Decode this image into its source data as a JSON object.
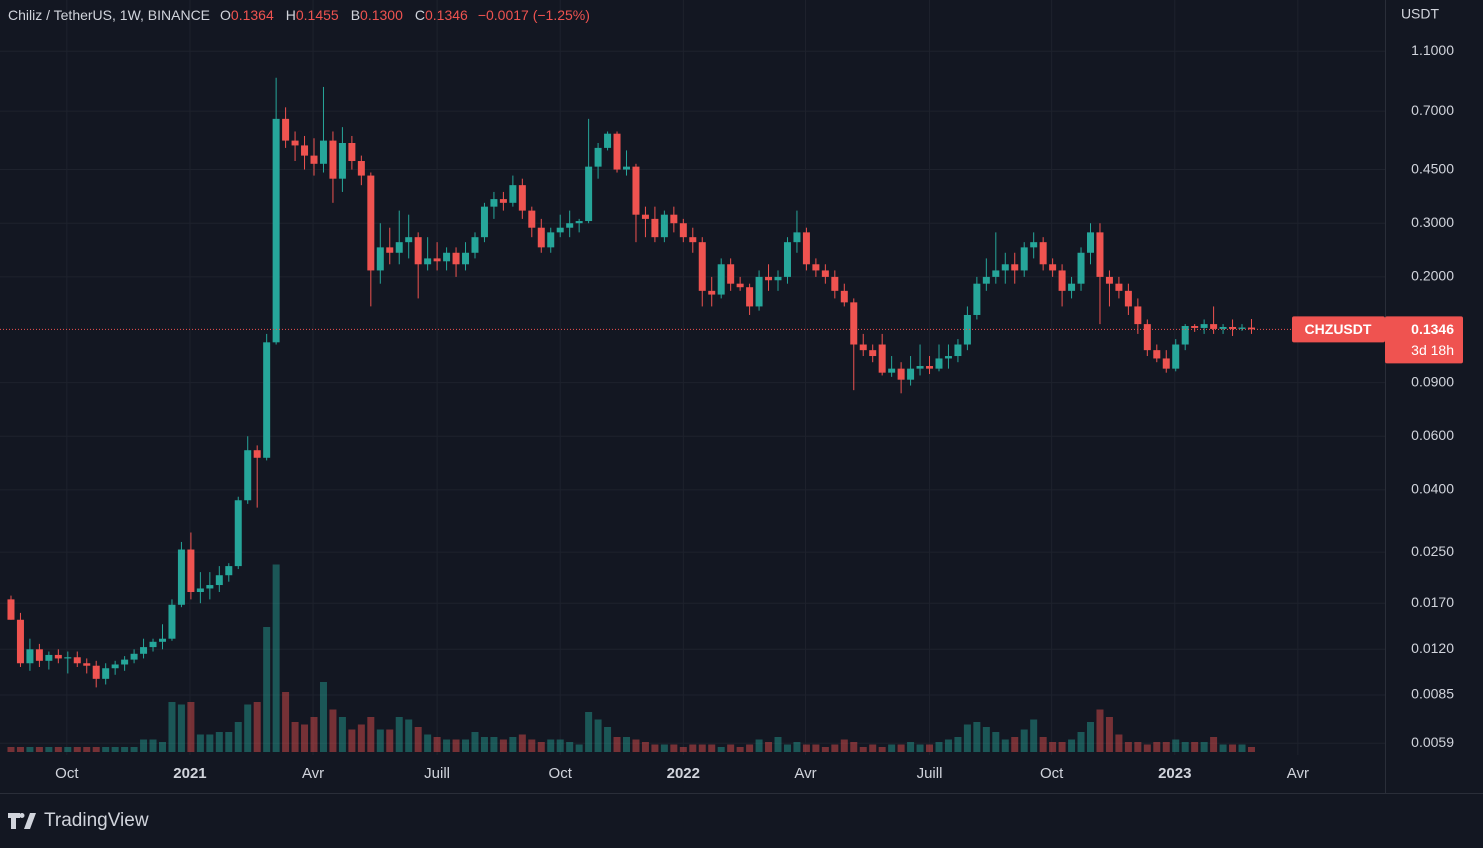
{
  "chart_data": {
    "type": "candlestick",
    "title": "Chiliz / TetherUS, 1W, BINANCE",
    "legend": [
      {
        "label": "O",
        "value": "0.1364"
      },
      {
        "label": "H",
        "value": "0.1455"
      },
      {
        "label": "B",
        "value": "0.1300"
      },
      {
        "label": "C",
        "value": "0.1346"
      }
    ],
    "change": "−0.0017 (−1.25%)",
    "unit": "USDT",
    "symbol": "CHZUSDT",
    "countdown": "3d 18h",
    "up_color": "#26a69a",
    "down_color": "#ef5350",
    "log_scale": true,
    "grid": true,
    "open": [
      0.0175,
      0.015,
      0.0108,
      0.012,
      0.011,
      0.0115,
      0.0112,
      0.0113,
      0.0108,
      0.0106,
      0.0096,
      0.0104,
      0.0107,
      0.0111,
      0.0116,
      0.0122,
      0.0127,
      0.013,
      0.0168,
      0.0255,
      0.0185,
      0.019,
      0.0195,
      0.021,
      0.0225,
      0.037,
      0.054,
      0.051,
      0.122,
      0.66,
      0.56,
      0.54,
      0.5,
      0.47,
      0.56,
      0.42,
      0.55,
      0.48,
      0.43,
      0.21,
      0.25,
      0.24,
      0.26,
      0.27,
      0.22,
      0.23,
      0.225,
      0.24,
      0.22,
      0.24,
      0.27,
      0.34,
      0.36,
      0.35,
      0.4,
      0.33,
      0.29,
      0.25,
      0.28,
      0.29,
      0.3,
      0.305,
      0.46,
      0.53,
      0.59,
      0.45,
      0.46,
      0.32,
      0.31,
      0.27,
      0.32,
      0.3,
      0.27,
      0.26,
      0.18,
      0.175,
      0.22,
      0.19,
      0.185,
      0.16,
      0.2,
      0.195,
      0.2,
      0.26,
      0.28,
      0.22,
      0.21,
      0.2,
      0.18,
      0.165,
      0.12,
      0.115,
      0.12,
      0.097,
      0.1,
      0.092,
      0.1,
      0.102,
      0.1,
      0.108,
      0.11,
      0.12,
      0.15,
      0.19,
      0.2,
      0.21,
      0.22,
      0.21,
      0.25,
      0.26,
      0.22,
      0.21,
      0.18,
      0.19,
      0.24,
      0.28,
      0.2,
      0.19,
      0.18,
      0.16,
      0.14,
      0.115,
      0.108,
      0.1,
      0.12,
      0.138,
      0.136,
      0.14,
      0.135,
      0.137,
      0.135,
      0.1364
    ],
    "high": [
      0.018,
      0.0158,
      0.013,
      0.0125,
      0.0118,
      0.012,
      0.0118,
      0.0118,
      0.0112,
      0.011,
      0.0108,
      0.011,
      0.0114,
      0.012,
      0.013,
      0.013,
      0.0145,
      0.0175,
      0.027,
      0.029,
      0.0215,
      0.0215,
      0.0225,
      0.023,
      0.038,
      0.06,
      0.056,
      0.13,
      0.9,
      0.72,
      0.6,
      0.58,
      0.57,
      0.84,
      0.6,
      0.62,
      0.58,
      0.5,
      0.44,
      0.3,
      0.29,
      0.33,
      0.32,
      0.28,
      0.27,
      0.26,
      0.25,
      0.25,
      0.26,
      0.28,
      0.35,
      0.38,
      0.38,
      0.43,
      0.42,
      0.34,
      0.31,
      0.29,
      0.32,
      0.33,
      0.31,
      0.66,
      0.55,
      0.6,
      0.6,
      0.52,
      0.47,
      0.34,
      0.34,
      0.33,
      0.34,
      0.31,
      0.29,
      0.27,
      0.2,
      0.23,
      0.23,
      0.2,
      0.19,
      0.21,
      0.22,
      0.21,
      0.27,
      0.33,
      0.29,
      0.23,
      0.22,
      0.21,
      0.19,
      0.17,
      0.13,
      0.12,
      0.13,
      0.11,
      0.105,
      0.11,
      0.12,
      0.11,
      0.12,
      0.12,
      0.125,
      0.16,
      0.2,
      0.23,
      0.28,
      0.24,
      0.24,
      0.26,
      0.28,
      0.27,
      0.23,
      0.22,
      0.2,
      0.25,
      0.3,
      0.3,
      0.21,
      0.2,
      0.19,
      0.17,
      0.145,
      0.12,
      0.115,
      0.125,
      0.14,
      0.14,
      0.145,
      0.16,
      0.14,
      0.145,
      0.14,
      0.1455
    ],
    "low": [
      0.015,
      0.0105,
      0.0102,
      0.0105,
      0.0103,
      0.0108,
      0.01,
      0.0105,
      0.01,
      0.009,
      0.0092,
      0.0099,
      0.0102,
      0.0108,
      0.0112,
      0.0118,
      0.012,
      0.0128,
      0.0165,
      0.0175,
      0.017,
      0.0175,
      0.0185,
      0.02,
      0.022,
      0.036,
      0.035,
      0.05,
      0.12,
      0.53,
      0.48,
      0.45,
      0.43,
      0.44,
      0.35,
      0.38,
      0.45,
      0.4,
      0.16,
      0.19,
      0.22,
      0.22,
      0.23,
      0.17,
      0.21,
      0.21,
      0.21,
      0.2,
      0.21,
      0.23,
      0.26,
      0.31,
      0.33,
      0.34,
      0.31,
      0.27,
      0.24,
      0.24,
      0.27,
      0.27,
      0.28,
      0.3,
      0.42,
      0.52,
      0.44,
      0.43,
      0.26,
      0.27,
      0.26,
      0.26,
      0.28,
      0.26,
      0.24,
      0.16,
      0.16,
      0.17,
      0.18,
      0.18,
      0.15,
      0.155,
      0.18,
      0.18,
      0.19,
      0.24,
      0.21,
      0.2,
      0.19,
      0.17,
      0.16,
      0.085,
      0.11,
      0.105,
      0.095,
      0.094,
      0.083,
      0.088,
      0.095,
      0.096,
      0.098,
      0.1,
      0.105,
      0.115,
      0.145,
      0.18,
      0.19,
      0.19,
      0.19,
      0.2,
      0.23,
      0.21,
      0.2,
      0.16,
      0.17,
      0.18,
      0.22,
      0.14,
      0.16,
      0.17,
      0.15,
      0.13,
      0.11,
      0.105,
      0.097,
      0.098,
      0.115,
      0.132,
      0.13,
      0.13,
      0.13,
      0.128,
      0.133,
      0.13
    ],
    "close": [
      0.015,
      0.0108,
      0.012,
      0.011,
      0.0115,
      0.0112,
      0.0113,
      0.0108,
      0.0106,
      0.0096,
      0.0104,
      0.0107,
      0.0111,
      0.0116,
      0.0122,
      0.0127,
      0.013,
      0.0168,
      0.0255,
      0.0185,
      0.019,
      0.0195,
      0.021,
      0.0225,
      0.037,
      0.054,
      0.051,
      0.122,
      0.66,
      0.56,
      0.54,
      0.5,
      0.47,
      0.56,
      0.42,
      0.55,
      0.48,
      0.43,
      0.21,
      0.25,
      0.24,
      0.26,
      0.27,
      0.22,
      0.23,
      0.225,
      0.24,
      0.22,
      0.24,
      0.27,
      0.34,
      0.36,
      0.35,
      0.4,
      0.33,
      0.29,
      0.25,
      0.28,
      0.29,
      0.3,
      0.305,
      0.46,
      0.53,
      0.59,
      0.45,
      0.46,
      0.32,
      0.31,
      0.27,
      0.32,
      0.3,
      0.27,
      0.26,
      0.18,
      0.175,
      0.22,
      0.19,
      0.185,
      0.16,
      0.2,
      0.195,
      0.2,
      0.26,
      0.28,
      0.22,
      0.21,
      0.2,
      0.18,
      0.165,
      0.12,
      0.115,
      0.11,
      0.097,
      0.1,
      0.092,
      0.1,
      0.102,
      0.1,
      0.108,
      0.11,
      0.12,
      0.15,
      0.19,
      0.2,
      0.21,
      0.22,
      0.21,
      0.25,
      0.26,
      0.22,
      0.21,
      0.18,
      0.19,
      0.24,
      0.28,
      0.2,
      0.19,
      0.18,
      0.16,
      0.14,
      0.115,
      0.108,
      0.1,
      0.12,
      0.138,
      0.136,
      0.14,
      0.135,
      0.137,
      0.135,
      0.1364,
      0.1346
    ],
    "volume": [
      2,
      2,
      2,
      2,
      2,
      2,
      2,
      2,
      2,
      2,
      2,
      2,
      2,
      2,
      5,
      5,
      4,
      20,
      19,
      20,
      7,
      7,
      8,
      8,
      12,
      19,
      20,
      50,
      75,
      24,
      12,
      11,
      14,
      28,
      17,
      14,
      9,
      11,
      14,
      9,
      9,
      14,
      13,
      10,
      7,
      6,
      5,
      5,
      5,
      8,
      6,
      6,
      5,
      6,
      7,
      5,
      4,
      5,
      5,
      4,
      3,
      16,
      13,
      10,
      6,
      6,
      5,
      4,
      3,
      3,
      3,
      2,
      3,
      3,
      3,
      2,
      3,
      2,
      3,
      5,
      4,
      6,
      3,
      4,
      3,
      3,
      2,
      3,
      5,
      4,
      2,
      3,
      2,
      3,
      3,
      4,
      3,
      3,
      4,
      5,
      6,
      11,
      12,
      10,
      8,
      5,
      6,
      9,
      13,
      6,
      4,
      4,
      5,
      8,
      12,
      17,
      14,
      7,
      4,
      4,
      3,
      4,
      4,
      5,
      4,
      4,
      4,
      6,
      3,
      3,
      3,
      2
    ],
    "ylim": [
      0.0054,
      1.62
    ],
    "yticks": [
      {
        "value": 1.1,
        "label": "1.1000"
      },
      {
        "value": 0.7,
        "label": "0.7000"
      },
      {
        "value": 0.45,
        "label": "0.4500"
      },
      {
        "value": 0.3,
        "label": "0.3000"
      },
      {
        "value": 0.2,
        "label": "0.2000"
      },
      {
        "value": 0.09,
        "label": "0.0900"
      },
      {
        "value": 0.06,
        "label": "0.0600"
      },
      {
        "value": 0.04,
        "label": "0.0400"
      },
      {
        "value": 0.025,
        "label": "0.0250"
      },
      {
        "value": 0.017,
        "label": "0.0170"
      },
      {
        "value": 0.012,
        "label": "0.0120"
      },
      {
        "value": 0.0085,
        "label": "0.0085"
      },
      {
        "value": 0.0059,
        "label": "0.0059"
      }
    ],
    "xlim": [
      -1.16,
      145.1
    ],
    "xticks": [
      {
        "value": 5.9,
        "label": "Oct"
      },
      {
        "value": 18.9,
        "label": "2021"
      },
      {
        "value": 31.9,
        "label": "Avr"
      },
      {
        "value": 45,
        "label": "Juill"
      },
      {
        "value": 58,
        "label": "Oct"
      },
      {
        "value": 71,
        "label": "2022"
      },
      {
        "value": 83.9,
        "label": "Avr"
      },
      {
        "value": 97,
        "label": "Juill"
      },
      {
        "value": 109.9,
        "label": "Oct"
      },
      {
        "value": 122.9,
        "label": "2023"
      },
      {
        "value": 135.9,
        "label": "Avr"
      }
    ],
    "volume_ylim": [
      0,
      100
    ]
  },
  "footer": {
    "brand": "TradingView"
  }
}
